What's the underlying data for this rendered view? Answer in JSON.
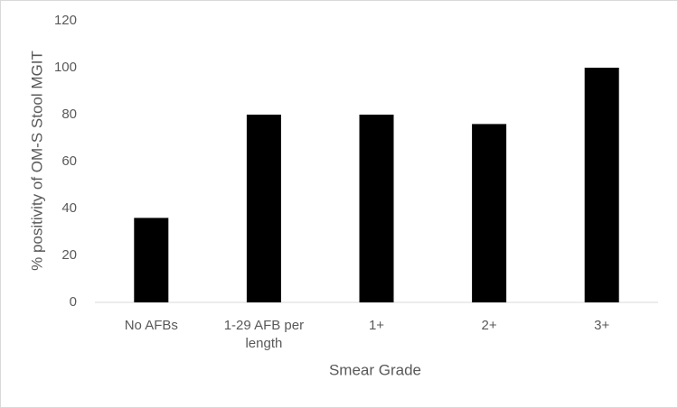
{
  "chart_data": {
    "type": "bar",
    "x_label": "Smear Grade",
    "y_label": "% positivity of OM-S Stool MGIT",
    "categories": [
      "No AFBs",
      "1-29 AFB per length",
      "1+",
      "2+",
      "3+"
    ],
    "values": [
      36,
      80,
      80,
      76,
      100
    ],
    "color": "#000000",
    "ylim": [
      0,
      120
    ],
    "yticks": [
      0,
      20,
      40,
      60,
      80,
      100,
      120
    ],
    "grid": false
  }
}
